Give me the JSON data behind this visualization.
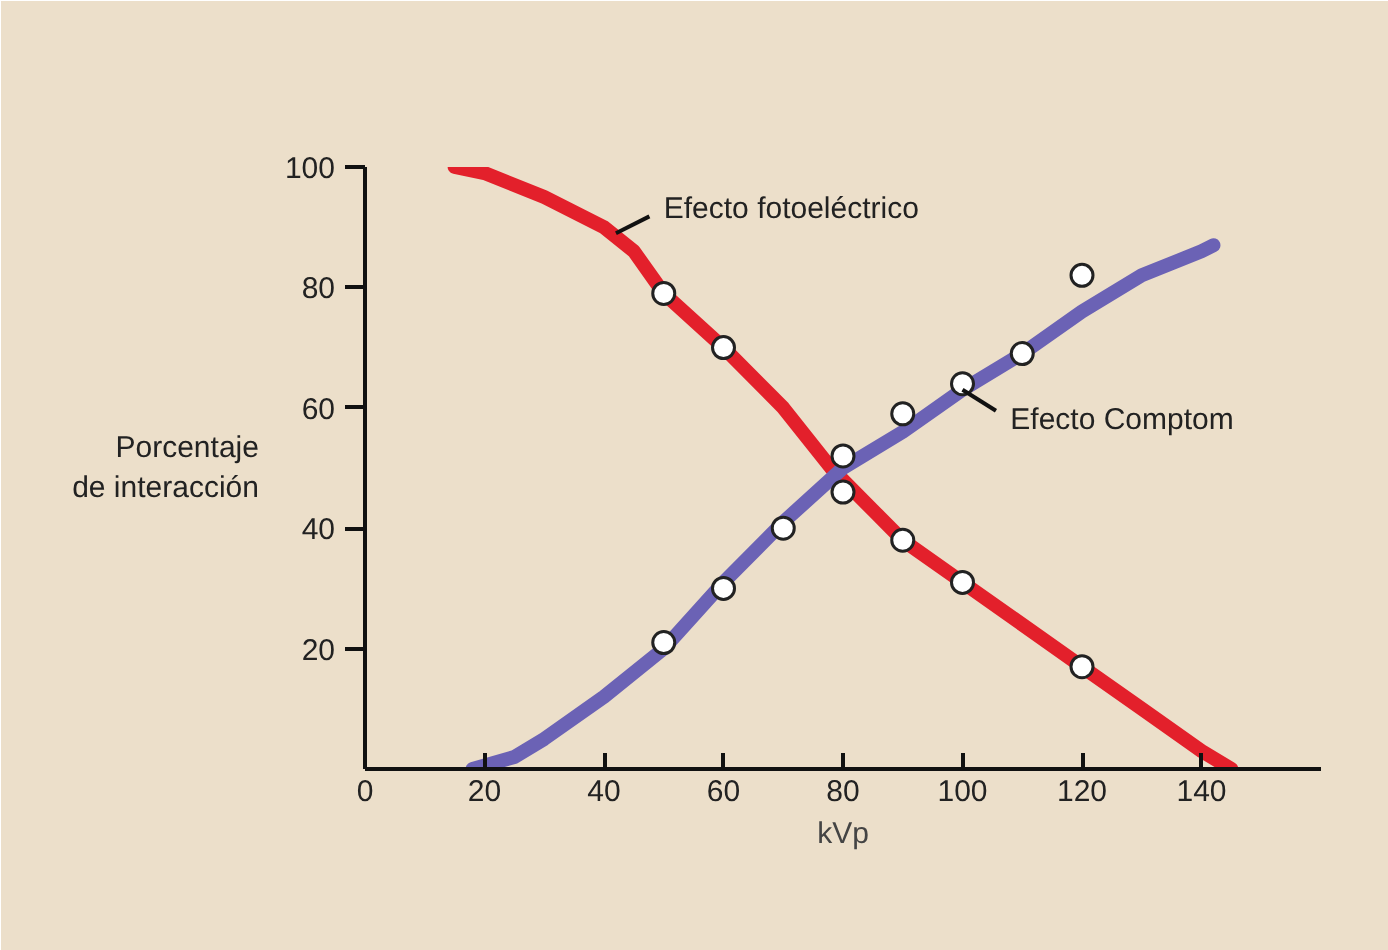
{
  "chart_data": {
    "type": "line",
    "xlabel": "kVp",
    "ylabel": "Porcentaje\nde interacción",
    "xlim": [
      0,
      160
    ],
    "ylim": [
      0,
      100
    ],
    "xticks": [
      0,
      20,
      40,
      60,
      80,
      100,
      120,
      140
    ],
    "yticks": [
      20,
      40,
      60,
      80,
      100
    ],
    "grid": false,
    "marker": "none",
    "line_style": "solid",
    "series": [
      {
        "color": "#e3202b",
        "x": [
          15,
          20,
          30,
          40,
          45,
          50,
          60,
          70,
          78,
          85,
          90,
          100,
          110,
          120,
          130,
          140,
          145
        ],
        "values": [
          100,
          99,
          95,
          90,
          86,
          79,
          70,
          60,
          50,
          43,
          38,
          31,
          24,
          17,
          10,
          3,
          0
        ]
      },
      {
        "color": "#6b62b5",
        "x": [
          18,
          25,
          30,
          40,
          50,
          60,
          70,
          80,
          90,
          100,
          110,
          120,
          130,
          140,
          142
        ],
        "values": [
          0,
          2,
          5,
          12,
          20,
          31,
          41,
          50,
          56,
          63,
          69,
          76,
          82,
          86,
          87
        ]
      },
      {
        "type": "scatter",
        "color": "#ffffff",
        "marker": "circle",
        "x": [
          50,
          60,
          80,
          90,
          100,
          120
        ],
        "values": [
          79,
          70,
          46,
          38,
          31,
          17
        ]
      },
      {
        "type": "scatter",
        "color": "#ffffff",
        "marker": "circle",
        "x": [
          50,
          60,
          70,
          80,
          90,
          100,
          110,
          120
        ],
        "values": [
          21,
          30,
          40,
          52,
          59,
          64,
          69,
          82
        ]
      }
    ],
    "annotations": [
      {
        "text": "Efecto fotoeléctrico",
        "x": 42,
        "y": 89
      },
      {
        "text": "Efecto Comptom",
        "x": 100,
        "y": 63
      }
    ]
  }
}
